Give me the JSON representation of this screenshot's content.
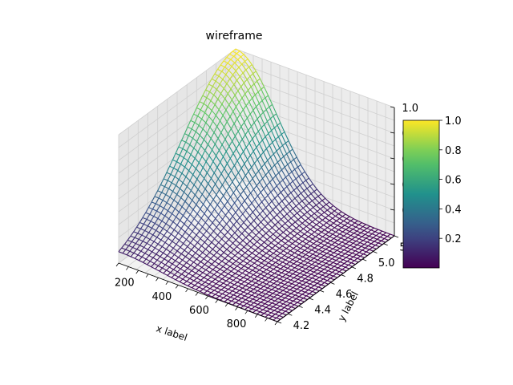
{
  "chart_data": {
    "type": "surface-wireframe-3d",
    "title": "wireframe",
    "xlabel": "x label",
    "ylabel": "y label",
    "xlim": [
      100,
      950
    ],
    "ylim": [
      4.2,
      5.3
    ],
    "zlim": [
      0,
      1
    ],
    "x_ticks": [
      200,
      400,
      600,
      800
    ],
    "y_ticks": [
      4.2,
      4.4,
      4.6,
      4.8,
      5.0,
      5.2
    ],
    "z_ticks": [
      0.2,
      0.4,
      0.6,
      0.8,
      1.0
    ],
    "surface": {
      "function": "gaussian",
      "peak_x": 100,
      "peak_y": 5.3,
      "peak_z": 1.0,
      "sigma_x": 220,
      "sigma_y": 0.5,
      "x_samples": 40,
      "y_samples": 40
    },
    "colormap": "viridis",
    "colorbar": {
      "min": 0,
      "max": 1,
      "ticks": [
        0.2,
        0.4,
        0.6,
        0.8,
        1.0
      ]
    },
    "grid": true
  }
}
